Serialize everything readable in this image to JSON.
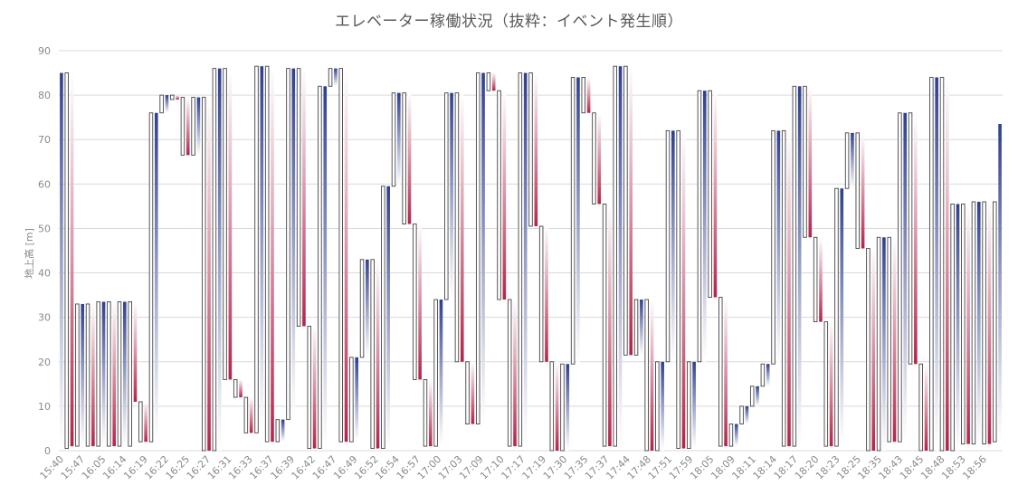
{
  "chart_data": {
    "type": "bar",
    "subtype": "floating-range (waterfall style); filled bar = moving travel, outlined bar = stop/idle range",
    "title": "エレベーター稼働状況（抜粋：イベント発生順）",
    "xlabel": "",
    "ylabel": "地上高 [m]",
    "ylim": [
      0,
      90
    ],
    "yticks": [
      0,
      10,
      20,
      30,
      40,
      50,
      60,
      70,
      80,
      90
    ],
    "grid": true,
    "legend": "none",
    "colors": {
      "up": "#2e3f8f",
      "down": "#b5234b",
      "mid": "#ffffff",
      "outline": "#444444",
      "grid": "#d9d9d9",
      "text": "#595959"
    },
    "x_tick_labels": [
      "15:40",
      "15:47",
      "16:05",
      "16:14",
      "16:19",
      "16:22",
      "16:25",
      "16:27",
      "16:31",
      "16:33",
      "16:37",
      "16:39",
      "16:42",
      "16:47",
      "16:49",
      "16:52",
      "16:54",
      "16:57",
      "17:00",
      "17:03",
      "17:09",
      "17:10",
      "17:17",
      "17:19",
      "17:30",
      "17:35",
      "17:37",
      "17:44",
      "17:48",
      "17:51",
      "17:59",
      "18:05",
      "18:09",
      "18:11",
      "18:14",
      "18:17",
      "18:20",
      "18:23",
      "18:25",
      "18:35",
      "18:43",
      "18:45",
      "18:48",
      "18:53",
      "18:56"
    ],
    "bars": [
      {
        "kind": "move",
        "start": 0.5,
        "end": 85
      },
      {
        "kind": "stop",
        "low": 0.5,
        "high": 85
      },
      {
        "kind": "move",
        "start": 85,
        "end": 1
      },
      {
        "kind": "stop",
        "low": 1,
        "high": 33
      },
      {
        "kind": "move",
        "start": 1,
        "end": 33
      },
      {
        "kind": "stop",
        "low": 1,
        "high": 33
      },
      {
        "kind": "move",
        "start": 33,
        "end": 1
      },
      {
        "kind": "stop",
        "low": 1,
        "high": 33.5
      },
      {
        "kind": "move",
        "start": 1,
        "end": 33.5
      },
      {
        "kind": "stop",
        "low": 1,
        "high": 33.5
      },
      {
        "kind": "move",
        "start": 33.5,
        "end": 1
      },
      {
        "kind": "stop",
        "low": 1,
        "high": 33.5
      },
      {
        "kind": "move",
        "start": 1,
        "end": 33.5
      },
      {
        "kind": "stop",
        "low": 1,
        "high": 33.5
      },
      {
        "kind": "move",
        "start": 33.5,
        "end": 11
      },
      {
        "kind": "stop",
        "low": 2,
        "high": 11
      },
      {
        "kind": "move",
        "start": 11,
        "end": 2
      },
      {
        "kind": "stop",
        "low": 2,
        "high": 76
      },
      {
        "kind": "move",
        "start": 2,
        "end": 76
      },
      {
        "kind": "stop",
        "low": 76,
        "high": 80
      },
      {
        "kind": "move",
        "start": 76,
        "end": 80
      },
      {
        "kind": "stop",
        "low": 79,
        "high": 80
      },
      {
        "kind": "move",
        "start": 80,
        "end": 79
      },
      {
        "kind": "stop",
        "low": 66.5,
        "high": 79.5
      },
      {
        "kind": "move",
        "start": 79.5,
        "end": 66.5
      },
      {
        "kind": "stop",
        "low": 66.5,
        "high": 79.5
      },
      {
        "kind": "move",
        "start": 66.5,
        "end": 79.5
      },
      {
        "kind": "stop",
        "low": 0,
        "high": 79.5
      },
      {
        "kind": "move",
        "start": 79.5,
        "end": 0
      },
      {
        "kind": "stop",
        "low": 0,
        "high": 86
      },
      {
        "kind": "move",
        "start": 0,
        "end": 86
      },
      {
        "kind": "stop",
        "low": 16,
        "high": 86
      },
      {
        "kind": "move",
        "start": 86,
        "end": 16
      },
      {
        "kind": "stop",
        "low": 12,
        "high": 16
      },
      {
        "kind": "move",
        "start": 16,
        "end": 12
      },
      {
        "kind": "stop",
        "low": 4,
        "high": 12
      },
      {
        "kind": "move",
        "start": 12,
        "end": 4
      },
      {
        "kind": "stop",
        "low": 4,
        "high": 86.5
      },
      {
        "kind": "move",
        "start": 4,
        "end": 86.5
      },
      {
        "kind": "stop",
        "low": 2,
        "high": 86.5
      },
      {
        "kind": "move",
        "start": 86.5,
        "end": 2
      },
      {
        "kind": "stop",
        "low": 2,
        "high": 7
      },
      {
        "kind": "move",
        "start": 2,
        "end": 7
      },
      {
        "kind": "stop",
        "low": 7,
        "high": 86
      },
      {
        "kind": "move",
        "start": 7,
        "end": 86
      },
      {
        "kind": "stop",
        "low": 28,
        "high": 86
      },
      {
        "kind": "move",
        "start": 86,
        "end": 28
      },
      {
        "kind": "stop",
        "low": 0.5,
        "high": 28
      },
      {
        "kind": "move",
        "start": 28,
        "end": 0.5
      },
      {
        "kind": "stop",
        "low": 0.5,
        "high": 82
      },
      {
        "kind": "move",
        "start": 0.5,
        "end": 82
      },
      {
        "kind": "stop",
        "low": 82,
        "high": 86
      },
      {
        "kind": "move",
        "start": 82,
        "end": 86
      },
      {
        "kind": "stop",
        "low": 2,
        "high": 86
      },
      {
        "kind": "move",
        "start": 86,
        "end": 2
      },
      {
        "kind": "stop",
        "low": 2,
        "high": 21
      },
      {
        "kind": "move",
        "start": 2,
        "end": 21
      },
      {
        "kind": "stop",
        "low": 21,
        "high": 43
      },
      {
        "kind": "move",
        "start": 21,
        "end": 43
      },
      {
        "kind": "stop",
        "low": 0.5,
        "high": 43
      },
      {
        "kind": "move",
        "start": 43,
        "end": 0.5
      },
      {
        "kind": "stop",
        "low": 0.5,
        "high": 59.5
      },
      {
        "kind": "move",
        "start": 0.5,
        "end": 59.5
      },
      {
        "kind": "stop",
        "low": 59.5,
        "high": 80.5
      },
      {
        "kind": "move",
        "start": 59.5,
        "end": 80.5
      },
      {
        "kind": "stop",
        "low": 51,
        "high": 80.5
      },
      {
        "kind": "move",
        "start": 80.5,
        "end": 51
      },
      {
        "kind": "stop",
        "low": 16,
        "high": 51
      },
      {
        "kind": "move",
        "start": 51,
        "end": 16
      },
      {
        "kind": "stop",
        "low": 1,
        "high": 16
      },
      {
        "kind": "move",
        "start": 16,
        "end": 1
      },
      {
        "kind": "stop",
        "low": 1,
        "high": 34
      },
      {
        "kind": "move",
        "start": 1,
        "end": 34
      },
      {
        "kind": "stop",
        "low": 34,
        "high": 80.5
      },
      {
        "kind": "move",
        "start": 34,
        "end": 80.5
      },
      {
        "kind": "stop",
        "low": 20,
        "high": 80.5
      },
      {
        "kind": "move",
        "start": 80.5,
        "end": 20
      },
      {
        "kind": "stop",
        "low": 6,
        "high": 20
      },
      {
        "kind": "move",
        "start": 20,
        "end": 6
      },
      {
        "kind": "stop",
        "low": 6,
        "high": 85
      },
      {
        "kind": "move",
        "start": 6,
        "end": 85
      },
      {
        "kind": "stop",
        "low": 81,
        "high": 85
      },
      {
        "kind": "move",
        "start": 85,
        "end": 81
      },
      {
        "kind": "stop",
        "low": 34,
        "high": 81
      },
      {
        "kind": "move",
        "start": 81,
        "end": 34
      },
      {
        "kind": "stop",
        "low": 1,
        "high": 34
      },
      {
        "kind": "move",
        "start": 34,
        "end": 1
      },
      {
        "kind": "stop",
        "low": 1,
        "high": 85
      },
      {
        "kind": "move",
        "start": 1,
        "end": 85
      },
      {
        "kind": "stop",
        "low": 50.5,
        "high": 85
      },
      {
        "kind": "move",
        "start": 85,
        "end": 50.5
      },
      {
        "kind": "stop",
        "low": 20,
        "high": 50.5
      },
      {
        "kind": "move",
        "start": 50.5,
        "end": 20
      },
      {
        "kind": "stop",
        "low": 0,
        "high": 20
      },
      {
        "kind": "move",
        "start": 20,
        "end": 0
      },
      {
        "kind": "stop",
        "low": 0,
        "high": 19.5
      },
      {
        "kind": "move",
        "start": 0,
        "end": 19.5
      },
      {
        "kind": "stop",
        "low": 19.5,
        "high": 84
      },
      {
        "kind": "move",
        "start": 19.5,
        "end": 84
      },
      {
        "kind": "stop",
        "low": 76,
        "high": 84
      },
      {
        "kind": "move",
        "start": 84,
        "end": 76
      },
      {
        "kind": "stop",
        "low": 55.5,
        "high": 76
      },
      {
        "kind": "move",
        "start": 76,
        "end": 55.5
      },
      {
        "kind": "stop",
        "low": 1,
        "high": 55.5
      },
      {
        "kind": "move",
        "start": 55.5,
        "end": 1
      },
      {
        "kind": "stop",
        "low": 1,
        "high": 86.5
      },
      {
        "kind": "move",
        "start": 1,
        "end": 86.5
      },
      {
        "kind": "stop",
        "low": 21.5,
        "high": 86.5
      },
      {
        "kind": "move",
        "start": 86.5,
        "end": 21.5
      },
      {
        "kind": "stop",
        "low": 21.5,
        "high": 34
      },
      {
        "kind": "move",
        "start": 21.5,
        "end": 34
      },
      {
        "kind": "stop",
        "low": 0,
        "high": 34
      },
      {
        "kind": "move",
        "start": 34,
        "end": 0
      },
      {
        "kind": "stop",
        "low": 0,
        "high": 20
      },
      {
        "kind": "move",
        "start": 0,
        "end": 20
      },
      {
        "kind": "stop",
        "low": 20,
        "high": 72
      },
      {
        "kind": "move",
        "start": 20,
        "end": 72
      },
      {
        "kind": "stop",
        "low": 0.5,
        "high": 72
      },
      {
        "kind": "move",
        "start": 72,
        "end": 0.5
      },
      {
        "kind": "stop",
        "low": 0.5,
        "high": 20
      },
      {
        "kind": "move",
        "start": 0.5,
        "end": 20
      },
      {
        "kind": "stop",
        "low": 20,
        "high": 81
      },
      {
        "kind": "move",
        "start": 20,
        "end": 81
      },
      {
        "kind": "stop",
        "low": 34.5,
        "high": 81
      },
      {
        "kind": "move",
        "start": 81,
        "end": 34.5
      },
      {
        "kind": "stop",
        "low": 1,
        "high": 34.5
      },
      {
        "kind": "move",
        "start": 34.5,
        "end": 1
      },
      {
        "kind": "stop",
        "low": 1,
        "high": 6
      },
      {
        "kind": "move",
        "start": 1,
        "end": 6
      },
      {
        "kind": "stop",
        "low": 6,
        "high": 10
      },
      {
        "kind": "move",
        "start": 6,
        "end": 10
      },
      {
        "kind": "stop",
        "low": 10,
        "high": 14.5
      },
      {
        "kind": "move",
        "start": 10,
        "end": 14.5
      },
      {
        "kind": "stop",
        "low": 14.5,
        "high": 19.5
      },
      {
        "kind": "move",
        "start": 14.5,
        "end": 19.5
      },
      {
        "kind": "stop",
        "low": 19.5,
        "high": 72
      },
      {
        "kind": "move",
        "start": 19.5,
        "end": 72
      },
      {
        "kind": "stop",
        "low": 1,
        "high": 72
      },
      {
        "kind": "move",
        "start": 72,
        "end": 1
      },
      {
        "kind": "stop",
        "low": 1,
        "high": 82
      },
      {
        "kind": "move",
        "start": 1,
        "end": 82
      },
      {
        "kind": "stop",
        "low": 48,
        "high": 82
      },
      {
        "kind": "move",
        "start": 82,
        "end": 48
      },
      {
        "kind": "stop",
        "low": 29,
        "high": 48
      },
      {
        "kind": "move",
        "start": 48,
        "end": 29
      },
      {
        "kind": "stop",
        "low": 1,
        "high": 29
      },
      {
        "kind": "move",
        "start": 29,
        "end": 1
      },
      {
        "kind": "stop",
        "low": 1,
        "high": 59
      },
      {
        "kind": "move",
        "start": 1,
        "end": 59
      },
      {
        "kind": "stop",
        "low": 59,
        "high": 71.5
      },
      {
        "kind": "move",
        "start": 59,
        "end": 71.5
      },
      {
        "kind": "stop",
        "low": 45.5,
        "high": 71.5
      },
      {
        "kind": "move",
        "start": 71.5,
        "end": 45.5
      },
      {
        "kind": "stop",
        "low": 0,
        "high": 45.5
      },
      {
        "kind": "move",
        "start": 45.5,
        "end": 0
      },
      {
        "kind": "stop",
        "low": 0,
        "high": 48
      },
      {
        "kind": "move",
        "start": 0,
        "end": 48
      },
      {
        "kind": "stop",
        "low": 2,
        "high": 48
      },
      {
        "kind": "move",
        "start": 48,
        "end": 2
      },
      {
        "kind": "stop",
        "low": 2,
        "high": 76
      },
      {
        "kind": "move",
        "start": 2,
        "end": 76
      },
      {
        "kind": "stop",
        "low": 19.5,
        "high": 76
      },
      {
        "kind": "move",
        "start": 76,
        "end": 19.5
      },
      {
        "kind": "stop",
        "low": 0,
        "high": 19.5
      },
      {
        "kind": "move",
        "start": 19.5,
        "end": 0
      },
      {
        "kind": "stop",
        "low": 0,
        "high": 84
      },
      {
        "kind": "move",
        "start": 0,
        "end": 84
      },
      {
        "kind": "stop",
        "low": 0,
        "high": 84
      },
      {
        "kind": "move",
        "start": 84,
        "end": 0
      },
      {
        "kind": "stop",
        "low": 0,
        "high": 55.5
      },
      {
        "kind": "move",
        "start": 0,
        "end": 55.5
      },
      {
        "kind": "stop",
        "low": 1.5,
        "high": 55.5
      },
      {
        "kind": "move",
        "start": 55.5,
        "end": 1.5
      },
      {
        "kind": "stop",
        "low": 1.5,
        "high": 56
      },
      {
        "kind": "move",
        "start": 1.5,
        "end": 56
      },
      {
        "kind": "stop",
        "low": 1.5,
        "high": 56
      },
      {
        "kind": "move",
        "start": 56,
        "end": 1.5
      },
      {
        "kind": "stop",
        "low": 2,
        "high": 56
      },
      {
        "kind": "move",
        "start": 2,
        "end": 73.5
      }
    ]
  }
}
